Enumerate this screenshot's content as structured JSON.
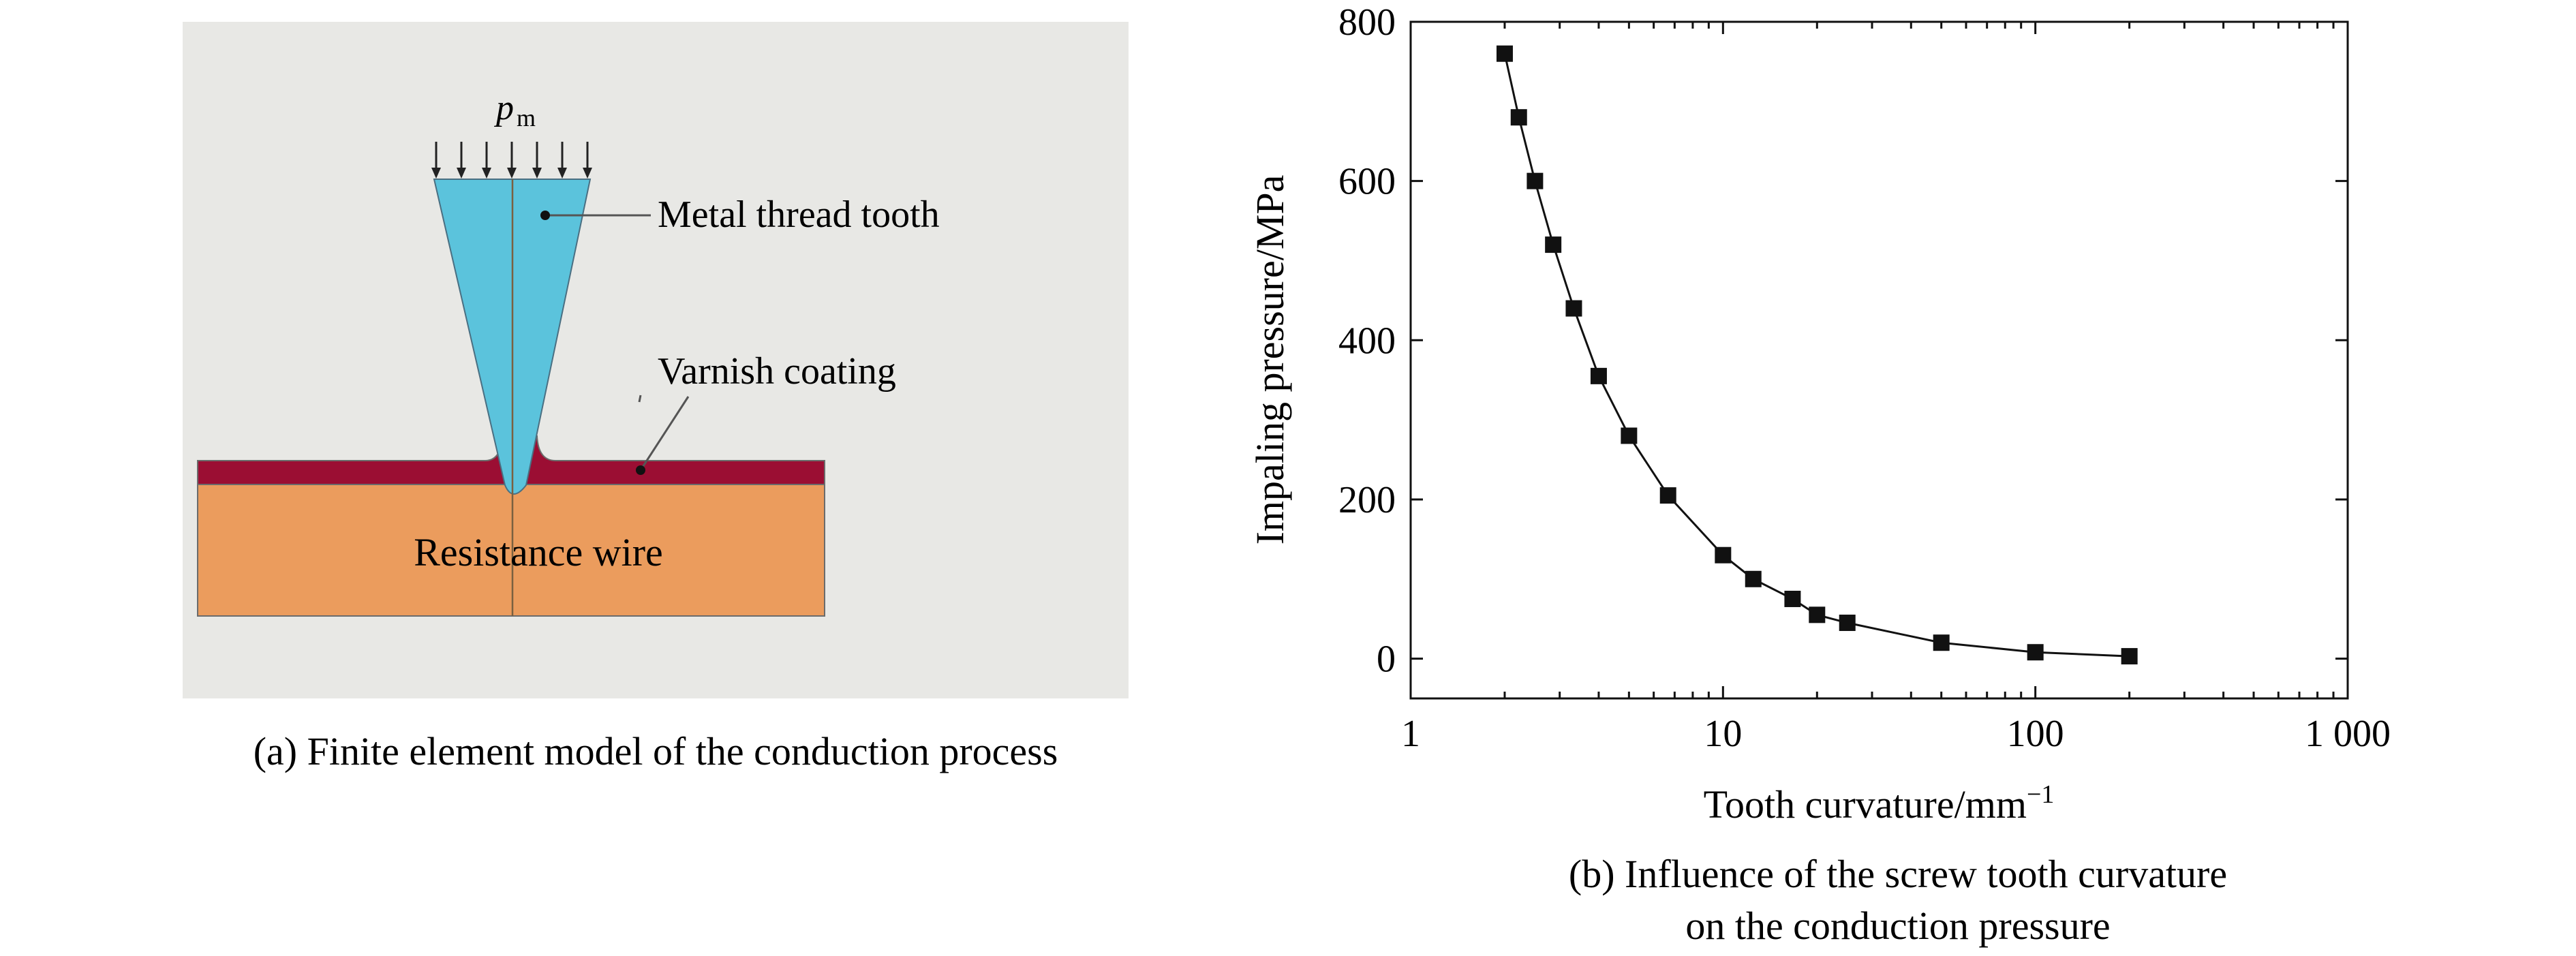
{
  "panel_a": {
    "load_symbol": "p",
    "load_subscript": "m",
    "label_tooth": "Metal thread tooth",
    "label_coating": "Varnish coating",
    "label_wire": "Resistance wire",
    "caption": "(a) Finite element model of the conduction process",
    "colors": {
      "background": "#e8e8e5",
      "tooth": "#5bc3dc",
      "coating": "#9b0e33",
      "wire": "#eb9c5d"
    }
  },
  "chart_data": {
    "type": "scatter",
    "x_scale": "log",
    "xlim": [
      1,
      1000
    ],
    "ylim": [
      -50,
      800
    ],
    "xlabel": "Tooth curvature/mm",
    "xlabel_sup": "−1",
    "ylabel": "Impaling pressure/MPa",
    "x_ticks": [
      1,
      10,
      100,
      1000
    ],
    "x_tick_labels": [
      "1",
      "10",
      "100",
      "1 000"
    ],
    "y_ticks": [
      0,
      200,
      400,
      600,
      800
    ],
    "y_tick_labels": [
      "0",
      "200",
      "400",
      "600",
      "800"
    ],
    "grid": false,
    "marker": "square",
    "series": [
      {
        "x": [
          2.0,
          2.22,
          2.5,
          2.86,
          3.33,
          4.0,
          5.0,
          6.67,
          10,
          12.5,
          16.7,
          20,
          25,
          50,
          100,
          200
        ],
        "y": [
          760,
          680,
          600,
          520,
          440,
          355,
          280,
          205,
          130,
          100,
          75,
          55,
          45,
          20,
          8,
          3
        ]
      }
    ],
    "caption_line1": "(b) Influence of the screw tooth curvature",
    "caption_line2": "on the conduction pressure"
  }
}
